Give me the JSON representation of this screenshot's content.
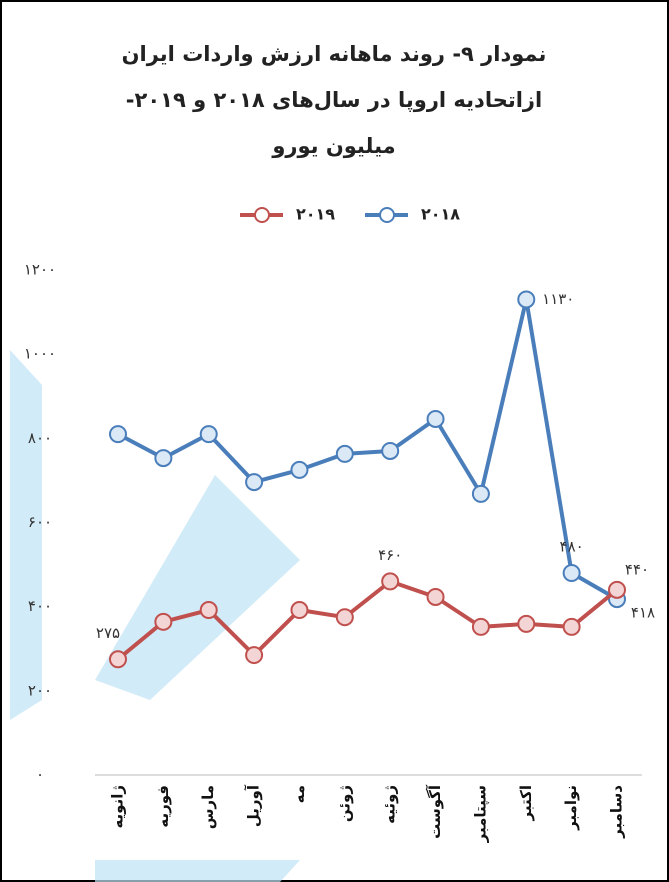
{
  "chart_data": {
    "type": "line",
    "title": [
      "نمودار ۹- روند ماهانه ارزش واردات ایران",
      "ازاتحادیه اروپا در سال‌های ۲۰۱۸ و ۲۰۱۹-",
      "میلیون یورو"
    ],
    "categories": [
      "ژانویه",
      "فوریه",
      "مارس",
      "آوریل",
      "مه",
      "ژوئن",
      "ژوئیه",
      "آگوست",
      "سپتامبر",
      "اکتبر",
      "نوامبر",
      "دسامبر"
    ],
    "series": [
      {
        "name": "۲۰۱۸",
        "color": "#4a7ebb",
        "values": [
          810,
          753,
          810,
          696,
          725,
          763,
          770,
          846,
          668,
          1130,
          480,
          418
        ],
        "value_labels": [
          null,
          null,
          null,
          null,
          null,
          null,
          null,
          null,
          null,
          "۱۱۳۰",
          "۴۸۰",
          "۴۱۸"
        ]
      },
      {
        "name": "۲۰۱۹",
        "color": "#c0504d",
        "values": [
          275,
          364,
          392,
          285,
          392,
          375,
          460,
          423,
          352,
          359,
          352,
          440
        ],
        "value_labels": [
          "۲۷۵",
          null,
          null,
          null,
          null,
          null,
          "۴۶۰",
          null,
          null,
          null,
          null,
          "۴۴۰"
        ]
      }
    ],
    "ylim": [
      0,
      1200
    ],
    "yticks": [
      {
        "value": 0,
        "label": "۰"
      },
      {
        "value": 200,
        "label": "۲۰۰"
      },
      {
        "value": 400,
        "label": "۴۰۰"
      },
      {
        "value": 600,
        "label": "۶۰۰"
      },
      {
        "value": 800,
        "label": "۸۰۰"
      },
      {
        "value": 1000,
        "label": "۱۰۰۰"
      },
      {
        "value": 1200,
        "label": "۱۲۰۰"
      }
    ],
    "grid": false,
    "legend": "top"
  }
}
